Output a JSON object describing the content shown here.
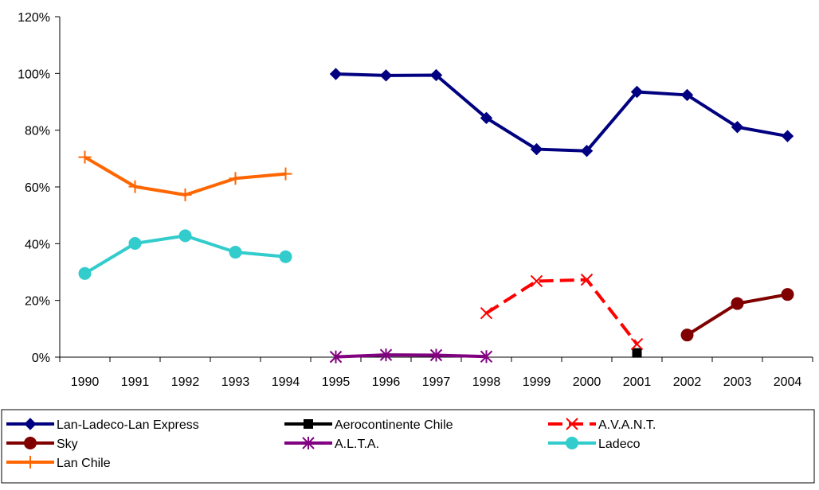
{
  "chart_data": {
    "type": "line",
    "title": "",
    "xlabel": "",
    "ylabel": "",
    "categories": [
      "1990",
      "1991",
      "1992",
      "1993",
      "1994",
      "1995",
      "1996",
      "1997",
      "1998",
      "1999",
      "2000",
      "2001",
      "2002",
      "2003",
      "2004"
    ],
    "ylim": [
      0,
      120
    ],
    "y_ticks": [
      "0%",
      "20%",
      "40%",
      "60%",
      "80%",
      "100%",
      "120%"
    ],
    "y_tick_values": [
      0,
      20,
      40,
      60,
      80,
      100,
      120
    ],
    "grid": false,
    "legend_position": "bottom",
    "series": [
      {
        "name": "Lan-Ladeco-Lan Express",
        "color": "#000080",
        "marker": "diamond",
        "dashed": false,
        "values": [
          null,
          null,
          null,
          null,
          null,
          99.8,
          99.3,
          99.4,
          84.3,
          73.3,
          72.7,
          93.5,
          92.4,
          81.1,
          77.9
        ]
      },
      {
        "name": "Aerocontinente Chile",
        "color": "#000000",
        "marker": "square",
        "dashed": false,
        "values": [
          null,
          null,
          null,
          null,
          null,
          null,
          null,
          null,
          null,
          null,
          null,
          1.5,
          null,
          null,
          null
        ]
      },
      {
        "name": "A.V.A.N.T.",
        "color": "#ff0000",
        "marker": "x",
        "dashed": true,
        "values": [
          null,
          null,
          null,
          null,
          null,
          null,
          null,
          null,
          15.5,
          26.8,
          27.3,
          4.6,
          null,
          null,
          null
        ]
      },
      {
        "name": "Sky",
        "color": "#800000",
        "marker": "circle",
        "dashed": false,
        "values": [
          null,
          null,
          null,
          null,
          null,
          null,
          null,
          null,
          null,
          null,
          null,
          null,
          7.8,
          18.9,
          22.1
        ]
      },
      {
        "name": "A.L.T.A.",
        "color": "#800080",
        "marker": "asterisk",
        "dashed": false,
        "values": [
          null,
          null,
          null,
          null,
          null,
          0.1,
          0.8,
          0.7,
          0.2,
          null,
          null,
          null,
          null,
          null,
          null
        ]
      },
      {
        "name": "Ladeco",
        "color": "#33cccc",
        "marker": "circle",
        "dashed": false,
        "values": [
          29.5,
          40.1,
          42.8,
          37.0,
          35.4,
          null,
          null,
          null,
          null,
          null,
          null,
          null,
          null,
          null,
          null
        ]
      },
      {
        "name": "Lan Chile",
        "color": "#ff6600",
        "marker": "plus",
        "dashed": false,
        "values": [
          70.5,
          60.1,
          57.2,
          63.0,
          64.6,
          null,
          null,
          null,
          null,
          null,
          null,
          null,
          null,
          null,
          null
        ]
      }
    ]
  }
}
